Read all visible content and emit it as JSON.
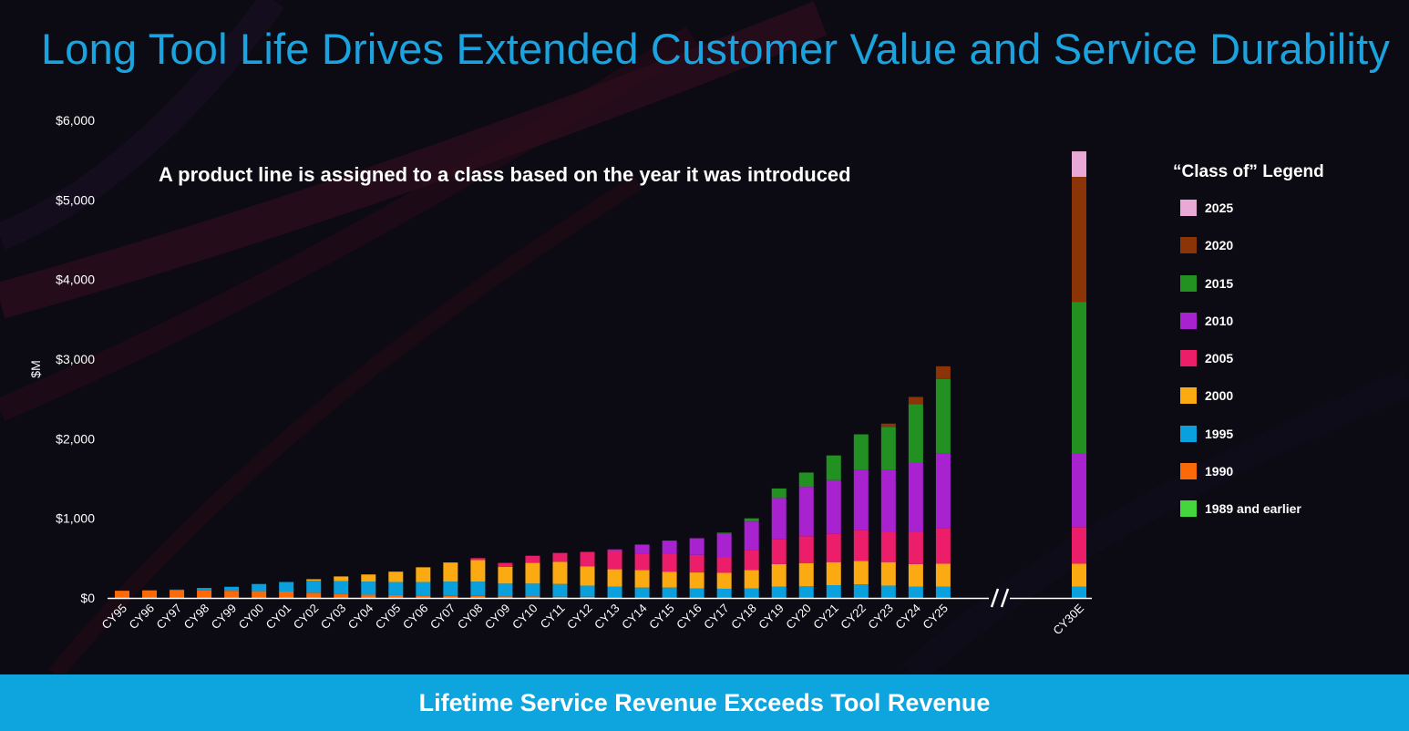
{
  "title": "Long Tool Life Drives Extended Customer Value and Service Durability",
  "subtitle": "A product line is assigned to a class based on the year it was introduced",
  "banner": "Lifetime Service Revenue Exceeds Tool Revenue",
  "legend": {
    "title": "“Class of” Legend",
    "items": [
      {
        "label": "2025",
        "color": "#e8a9d6"
      },
      {
        "label": "2020",
        "color": "#8b3408"
      },
      {
        "label": "2015",
        "color": "#239022"
      },
      {
        "label": "2010",
        "color": "#a822d0"
      },
      {
        "label": "2005",
        "color": "#ec1e6a"
      },
      {
        "label": "2000",
        "color": "#fbab11"
      },
      {
        "label": "1995",
        "color": "#0a9fdd"
      },
      {
        "label": "1990",
        "color": "#fb6a09"
      },
      {
        "label": "1989 and earlier",
        "color": "#45d63d"
      }
    ]
  },
  "chart_data": {
    "type": "bar",
    "stacked": true,
    "ylabel": "$M",
    "ylim": [
      0,
      6000
    ],
    "yticks": [
      {
        "value": 0,
        "label": "$0"
      },
      {
        "value": 1000,
        "label": "$1,000"
      },
      {
        "value": 2000,
        "label": "$2,000"
      },
      {
        "value": 3000,
        "label": "$3,000"
      },
      {
        "value": 4000,
        "label": "$4,000"
      },
      {
        "value": 5000,
        "label": "$5,000"
      },
      {
        "value": 6000,
        "label": "$6,000"
      }
    ],
    "axis_break_between": [
      "CY25",
      "CY30E"
    ],
    "categories": [
      "CY95",
      "CY96",
      "CY97",
      "CY98",
      "CY99",
      "CY00",
      "CY01",
      "CY02",
      "CY03",
      "CY04",
      "CY05",
      "CY06",
      "CY07",
      "CY08",
      "CY09",
      "CY10",
      "CY11",
      "CY12",
      "CY13",
      "CY14",
      "CY15",
      "CY16",
      "CY17",
      "CY18",
      "CY19",
      "CY20",
      "CY21",
      "CY22",
      "CY23",
      "CY24",
      "CY25",
      "CY30E"
    ],
    "series": [
      {
        "name": "1989 and earlier",
        "color": "#45d63d",
        "values": [
          0,
          0,
          0,
          0,
          0,
          0,
          0,
          0,
          0,
          0,
          0,
          0,
          0,
          0,
          0,
          0,
          0,
          0,
          0,
          0,
          0,
          0,
          0,
          0,
          0,
          0,
          0,
          0,
          0,
          0,
          0,
          0
        ]
      },
      {
        "name": "1990",
        "color": "#fb6a09",
        "values": [
          90,
          95,
          95,
          95,
          90,
          85,
          80,
          65,
          50,
          40,
          35,
          30,
          25,
          25,
          20,
          20,
          15,
          15,
          10,
          10,
          10,
          10,
          10,
          10,
          10,
          10,
          10,
          10,
          10,
          10,
          10,
          10
        ]
      },
      {
        "name": "1995",
        "color": "#0a9fdd",
        "values": [
          0,
          0,
          10,
          30,
          50,
          90,
          120,
          150,
          160,
          165,
          165,
          170,
          180,
          180,
          160,
          160,
          160,
          140,
          130,
          120,
          120,
          110,
          105,
          110,
          130,
          135,
          150,
          160,
          145,
          130,
          130,
          130
        ]
      },
      {
        "name": "2000",
        "color": "#fbab11",
        "values": [
          0,
          0,
          0,
          0,
          0,
          0,
          0,
          20,
          60,
          90,
          130,
          185,
          240,
          270,
          210,
          260,
          280,
          240,
          220,
          220,
          200,
          200,
          200,
          230,
          285,
          290,
          290,
          295,
          295,
          285,
          290,
          290
        ]
      },
      {
        "name": "2005",
        "color": "#ec1e6a",
        "values": [
          0,
          0,
          0,
          0,
          0,
          0,
          0,
          0,
          0,
          0,
          0,
          0,
          0,
          25,
          50,
          90,
          110,
          180,
          230,
          200,
          230,
          220,
          200,
          250,
          310,
          340,
          360,
          390,
          380,
          410,
          450,
          460
        ]
      },
      {
        "name": "2010",
        "color": "#a822d0",
        "values": [
          0,
          0,
          0,
          0,
          0,
          0,
          0,
          0,
          0,
          0,
          0,
          0,
          0,
          0,
          0,
          0,
          0,
          5,
          20,
          120,
          160,
          210,
          290,
          360,
          520,
          620,
          670,
          750,
          780,
          860,
          940,
          920
        ]
      },
      {
        "name": "2015",
        "color": "#239022",
        "values": [
          0,
          0,
          0,
          0,
          0,
          0,
          0,
          0,
          0,
          0,
          0,
          0,
          0,
          0,
          0,
          0,
          0,
          0,
          0,
          0,
          0,
          0,
          15,
          40,
          120,
          180,
          310,
          450,
          540,
          740,
          930,
          1910
        ]
      },
      {
        "name": "2020",
        "color": "#8b3408",
        "values": [
          0,
          0,
          0,
          0,
          0,
          0,
          0,
          0,
          0,
          0,
          0,
          0,
          0,
          0,
          0,
          0,
          0,
          0,
          0,
          0,
          0,
          0,
          0,
          0,
          0,
          0,
          0,
          0,
          40,
          90,
          160,
          1570
        ]
      },
      {
        "name": "2025",
        "color": "#e8a9d6",
        "values": [
          0,
          0,
          0,
          0,
          0,
          0,
          0,
          0,
          0,
          0,
          0,
          0,
          0,
          0,
          0,
          0,
          0,
          0,
          0,
          0,
          0,
          0,
          0,
          0,
          0,
          0,
          0,
          0,
          0,
          0,
          0,
          320
        ]
      }
    ]
  }
}
